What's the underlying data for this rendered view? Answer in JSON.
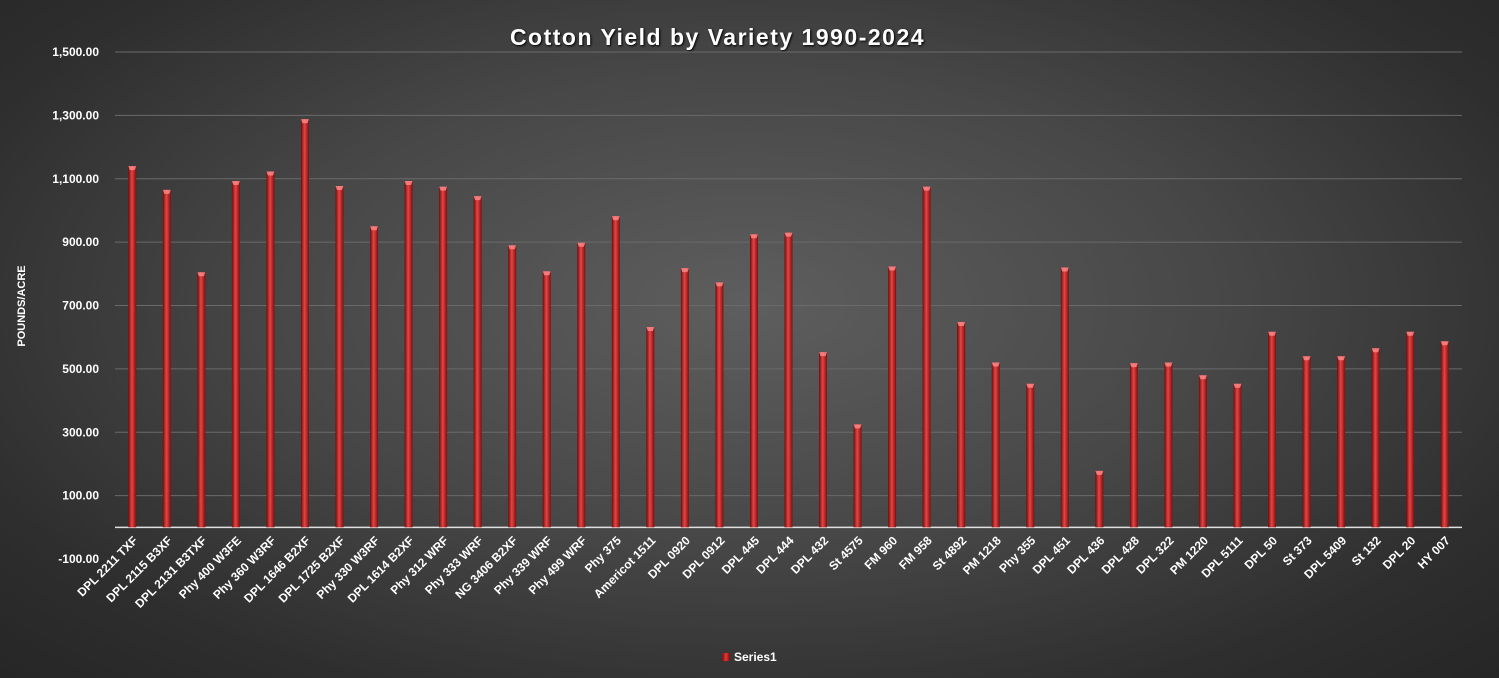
{
  "chart_data": {
    "type": "bar",
    "title": "Cotton Yield by Variety 1990-2024",
    "ylabel": "POUNDS/ACRE",
    "xlabel": "",
    "ylim": [
      -100,
      1500
    ],
    "y_ticks": [
      "-100.00",
      "100.00",
      "300.00",
      "500.00",
      "700.00",
      "900.00",
      "1,100.00",
      "1,300.00",
      "1,500.00"
    ],
    "grid": true,
    "legend_position": "bottom",
    "categories": [
      "DPL 2211 TXF",
      "DPL 2115 B3XF",
      "DPL 2131 B3TXF",
      "Phy 400 W3FE",
      "Phy 360 W3RF",
      "DPL 1646 B2XF",
      "DPL 1725 B2XF",
      "Phy 330 W3RF",
      "DPL 1614 B2XF",
      "Phy 312 WRF",
      "Phy 333 WRF",
      "NG 3406 B2XF",
      "Phy 339 WRF",
      "Phy 499 WRF",
      "Phy 375",
      "Americot 1511",
      "DPL 0920",
      "DPL 0912",
      "DPL 445",
      "DPL 444",
      "DPL 432",
      "St 4575",
      "FM 960",
      "FM 958",
      "St 4892",
      "PM 1218",
      "Phy 355",
      "DPL 451",
      "DPL 436",
      "DPL 428",
      "DPL 322",
      "PM 1220",
      "DPL 5111",
      "DPL 50",
      "St 373",
      "DPL 5409",
      "St 132",
      "DPL 20",
      "HY 007"
    ],
    "series": [
      {
        "name": "Series1",
        "color": "#c62a2a",
        "values": [
          1140,
          1065,
          805,
          1093,
          1123,
          1288,
          1077,
          950,
          1093,
          1075,
          1045,
          890,
          808,
          898,
          982,
          632,
          818,
          773,
          925,
          930,
          553,
          325,
          823,
          1075,
          648,
          520,
          453,
          820,
          178,
          518,
          520,
          480,
          453,
          617,
          540,
          540,
          565,
          617,
          587
        ]
      }
    ]
  }
}
